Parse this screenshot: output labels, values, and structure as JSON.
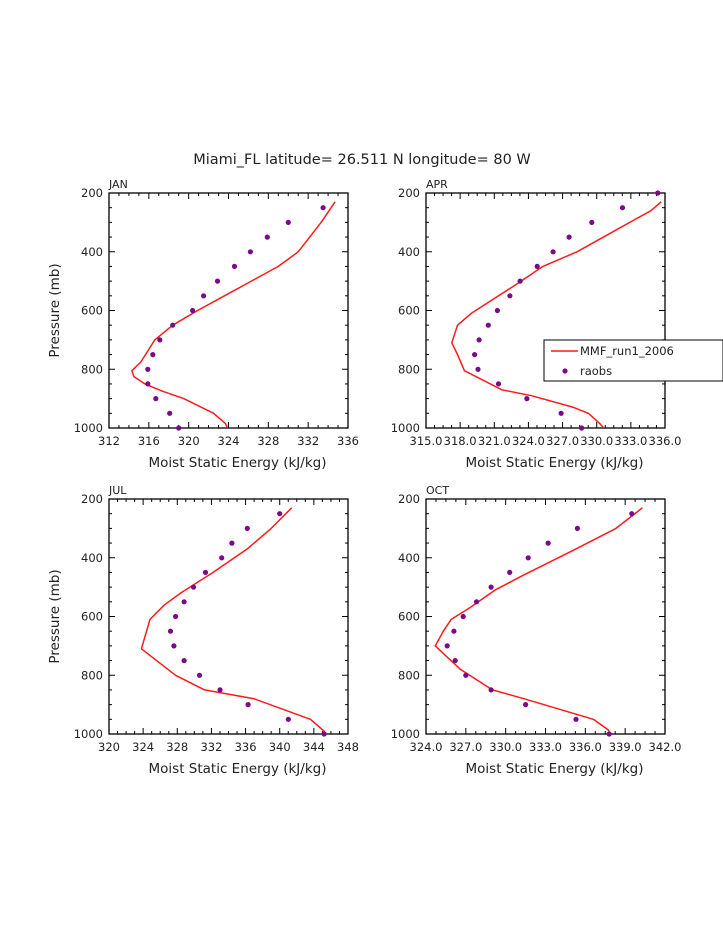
{
  "title": "Miami_FL  latitude= 26.511 N longitude= 80 W",
  "legend": {
    "model_label": "MMF_run1_2006",
    "obs_label": "raobs"
  },
  "colors": {
    "model": "#ff1a1a",
    "obs": "#7a0a8a",
    "axis": "#000000"
  },
  "chart_data": [
    {
      "type": "line",
      "panel": "JAN",
      "xlabel": "Moist Static Energy (kJ/kg)",
      "ylabel": "Pressure (mb)",
      "xlim": [
        312,
        336
      ],
      "ylim": [
        1000,
        200
      ],
      "xticks": [
        312,
        316,
        320,
        324,
        328,
        332,
        336
      ],
      "xtick_labels": [
        "312",
        "316",
        "320",
        "324",
        "328",
        "332",
        "336"
      ],
      "yticks": [
        200,
        400,
        600,
        800,
        1000
      ],
      "series": [
        {
          "name": "MMF_run1_2006",
          "kind": "line",
          "x": [
            324.1,
            323.7,
            322.5,
            319.5,
            317.4,
            315.6,
            314.5,
            314.3,
            315.2,
            316.6,
            318.4,
            320.9,
            323.6,
            326.3,
            329.0,
            331.0,
            333.3,
            334.7
          ],
          "y": [
            1015,
            985,
            950,
            900,
            875,
            850,
            825,
            805,
            775,
            700,
            650,
            600,
            550,
            500,
            450,
            400,
            300,
            230
          ]
        },
        {
          "name": "raobs",
          "kind": "scatter",
          "x": [
            319.0,
            318.1,
            316.7,
            315.9,
            315.9,
            316.4,
            317.1,
            318.4,
            320.4,
            321.5,
            322.9,
            324.6,
            326.2,
            327.9,
            330.0,
            333.5
          ],
          "y": [
            1000,
            950,
            900,
            850,
            800,
            750,
            700,
            650,
            600,
            550,
            500,
            450,
            400,
            350,
            300,
            250
          ]
        }
      ]
    },
    {
      "type": "line",
      "panel": "APR",
      "xlabel": "Moist Static Energy (kJ/kg)",
      "ylabel": "",
      "xlim": [
        315.03,
        336.03
      ],
      "ylim": [
        1000,
        200
      ],
      "xticks": [
        315.03,
        318.03,
        321.03,
        324.03,
        327.03,
        330.03,
        333.03,
        336.03
      ],
      "xtick_labels": [
        "315.0",
        "318.0",
        "321.0",
        "324.0",
        "327.0",
        "330.0",
        "333.0",
        "336.0"
      ],
      "yticks": [
        200,
        400,
        600,
        800,
        1000
      ],
      "series": [
        {
          "name": "MMF_run1_2006",
          "kind": "line",
          "x": [
            331.0,
            330.3,
            329.3,
            328.0,
            324.3,
            321.7,
            318.4,
            317.8,
            317.3,
            317.8,
            319.0,
            321.0,
            323.0,
            325.3,
            328.3,
            332.0,
            334.8,
            335.7
          ],
          "y": [
            1015,
            985,
            950,
            930,
            890,
            870,
            805,
            750,
            710,
            650,
            610,
            560,
            510,
            450,
            400,
            320,
            260,
            230
          ]
        },
        {
          "name": "raobs",
          "kind": "scatter",
          "x": [
            328.7,
            326.9,
            323.9,
            321.4,
            319.6,
            319.3,
            319.7,
            320.5,
            321.3,
            322.4,
            323.3,
            324.8,
            326.2,
            327.6,
            329.6,
            332.3,
            335.4
          ],
          "y": [
            1000,
            950,
            900,
            850,
            800,
            750,
            700,
            650,
            600,
            550,
            500,
            450,
            400,
            350,
            300,
            250,
            200
          ]
        }
      ]
    },
    {
      "type": "line",
      "panel": "JUL",
      "xlabel": "Moist Static Energy (kJ/kg)",
      "ylabel": "Pressure (mb)",
      "xlim": [
        320,
        348
      ],
      "ylim": [
        1000,
        200
      ],
      "xticks": [
        320,
        324,
        328,
        332,
        336,
        340,
        344,
        348
      ],
      "xtick_labels": [
        "320",
        "324",
        "328",
        "332",
        "336",
        "340",
        "344",
        "348"
      ],
      "yticks": [
        200,
        400,
        600,
        800,
        1000
      ],
      "series": [
        {
          "name": "MMF_run1_2006",
          "kind": "line",
          "x": [
            345.6,
            345.2,
            343.6,
            337.0,
            331.2,
            327.8,
            323.8,
            324.3,
            324.8,
            326.5,
            328.4,
            332.2,
            336.2,
            339.0,
            341.4
          ],
          "y": [
            1010,
            990,
            950,
            880,
            850,
            800,
            710,
            660,
            610,
            560,
            520,
            450,
            370,
            300,
            230
          ]
        },
        {
          "name": "raobs",
          "kind": "scatter",
          "x": [
            345.2,
            341.0,
            336.3,
            333.0,
            330.6,
            328.8,
            327.6,
            327.2,
            327.8,
            328.8,
            329.9,
            331.3,
            333.2,
            334.4,
            336.2,
            340.0
          ],
          "y": [
            1000,
            950,
            900,
            850,
            800,
            750,
            700,
            650,
            600,
            550,
            500,
            450,
            400,
            350,
            300,
            250
          ]
        }
      ]
    },
    {
      "type": "line",
      "panel": "OCT",
      "xlabel": "Moist Static Energy (kJ/kg)",
      "ylabel": "",
      "xlim": [
        324,
        342
      ],
      "ylim": [
        1000,
        200
      ],
      "xticks": [
        324,
        327,
        330,
        333,
        336,
        339,
        342
      ],
      "xtick_labels": [
        "324.0",
        "327.0",
        "330.0",
        "333.0",
        "336.0",
        "339.0",
        "342.0"
      ],
      "yticks": [
        200,
        400,
        600,
        800,
        1000
      ],
      "series": [
        {
          "name": "MMF_run1_2006",
          "kind": "line",
          "x": [
            338.1,
            337.7,
            336.6,
            331.4,
            329.0,
            326.6,
            324.7,
            325.3,
            325.9,
            327.3,
            329.2,
            331.3,
            335.3,
            338.3,
            340.3
          ],
          "y": [
            1015,
            985,
            950,
            880,
            850,
            780,
            700,
            650,
            610,
            570,
            510,
            460,
            370,
            300,
            230
          ]
        },
        {
          "name": "raobs",
          "kind": "scatter",
          "x": [
            337.8,
            335.3,
            331.5,
            328.9,
            327.0,
            326.2,
            325.6,
            326.1,
            326.8,
            327.8,
            328.9,
            330.3,
            331.7,
            333.2,
            335.4,
            339.5
          ],
          "y": [
            1000,
            950,
            900,
            850,
            800,
            750,
            700,
            650,
            600,
            550,
            500,
            450,
            400,
            350,
            300,
            250
          ]
        }
      ]
    }
  ]
}
